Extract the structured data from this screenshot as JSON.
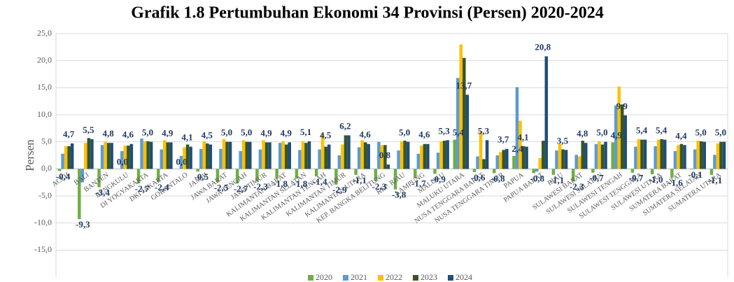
{
  "chart_data": {
    "type": "bar",
    "title": "Grafik 1.8 Pertumbuhan Ekonomi 34 Provinsi (Persen) 2020-2024",
    "y_label": "Persen",
    "categories": [
      "ACEH",
      "BALI",
      "BANTEN",
      "BENGKULU",
      "DI YOGYAKARTA",
      "DKI JAKARTA",
      "GORONTALO",
      "JAMBI",
      "JAWA BARAT",
      "JAWA TENGAH",
      "JAWA TIMUR",
      "KALIMANTAN BARAT",
      "KALIMANTAN SELATAN",
      "KALIMANTAN TENGAH",
      "KALIMANTAN TIMUR",
      "KALIMANTAN UTARA",
      "KEP. BANGKA BELITUNG",
      "KEP. RIAU",
      "LAMPUNG",
      "MALUKU",
      "MALUKU UTARA",
      "NUSA TENGGARA BARAT",
      "NUSA TENGGARA TIMUR",
      "PAPUA",
      "PAPUA BARAT",
      "RIAU",
      "SULAWESI BARAT",
      "SULAWESI SELATAN",
      "SULAWESI TENGAH",
      "SULAWESI TENGGARA",
      "SULAWESI UTARA",
      "SUMATERA BARAT",
      "SUMATERA SELATAN",
      "SUMATERA UTARA"
    ],
    "series": [
      {
        "name": "2020",
        "color": "#70ad47",
        "values": [
          -0.4,
          -9.3,
          -3.4,
          0.0,
          -2.7,
          -2.4,
          0.0,
          -0.5,
          -2.5,
          -2.7,
          -2.3,
          -1.8,
          -1.8,
          -1.4,
          -2.9,
          -1.1,
          -2.3,
          -3.8,
          -1.7,
          -0.9,
          5.4,
          -0.6,
          -0.8,
          2.4,
          -0.8,
          -1.1,
          -2.3,
          -0.7,
          4.9,
          -0.7,
          -1.0,
          -1.6,
          -0.1,
          -1.1
        ],
        "value_labels": [
          "-0,4",
          "-9,3",
          "-3,4",
          "0,0",
          "-2,7",
          "-2,4",
          "0,0",
          "-0,5",
          "-2,5",
          "-2,7",
          "-2,3",
          "-1,8",
          "-1,8",
          "-1,4",
          "-2,9",
          "-1,1",
          "-2,3",
          "-3,8",
          "-1,7",
          "-0,9",
          "5,4",
          "-0,6",
          "-0,8",
          "2,4",
          "-0,8",
          "-1,1",
          "-2,3",
          "-0,7",
          "4,9",
          "-0,7",
          "-1,0",
          "-1,6",
          "-0,1",
          "-1,1"
        ]
      },
      {
        "name": "2021",
        "color": "#5b9bd5",
        "values": [
          2.8,
          -2.5,
          4.4,
          3.3,
          5.6,
          3.6,
          2.4,
          3.7,
          3.7,
          3.3,
          3.6,
          4.8,
          3.5,
          3.6,
          2.5,
          4.0,
          5.0,
          3.4,
          2.8,
          3.0,
          16.8,
          2.3,
          2.5,
          15.1,
          -0.5,
          3.4,
          2.6,
          4.6,
          11.7,
          4.1,
          4.2,
          3.3,
          3.6,
          2.6
        ]
      },
      {
        "name": "2022",
        "color": "#ffc000",
        "values": [
          4.2,
          4.8,
          5.0,
          4.3,
          5.1,
          5.3,
          4.0,
          5.1,
          5.5,
          5.3,
          5.3,
          5.1,
          5.1,
          6.5,
          4.5,
          5.3,
          4.4,
          5.1,
          4.3,
          5.1,
          23.0,
          6.9,
          3.1,
          8.9,
          2.0,
          4.6,
          2.3,
          5.1,
          15.2,
          5.5,
          5.4,
          4.4,
          5.2,
          4.7
        ]
      },
      {
        "name": "2023",
        "color": "#375623",
        "values": [
          4.2,
          5.7,
          4.8,
          4.3,
          5.1,
          4.9,
          4.5,
          4.7,
          5.0,
          5.0,
          4.9,
          4.5,
          4.8,
          4.1,
          6.2,
          4.9,
          4.4,
          5.2,
          4.6,
          5.2,
          20.5,
          1.8,
          3.5,
          4.2,
          5.2,
          3.6,
          5.2,
          4.5,
          11.9,
          5.4,
          5.5,
          4.6,
          5.1,
          5.0
        ]
      },
      {
        "name": "2024",
        "color": "#1f4e79",
        "values": [
          4.7,
          5.5,
          4.8,
          4.6,
          5.0,
          4.9,
          4.1,
          4.5,
          5.0,
          5.0,
          4.9,
          4.9,
          5.1,
          4.5,
          6.2,
          4.6,
          0.8,
          5.0,
          4.6,
          5.3,
          13.7,
          5.3,
          3.7,
          4.1,
          20.8,
          3.5,
          4.8,
          5.0,
          9.9,
          5.4,
          5.4,
          4.4,
          5.0,
          5.0
        ],
        "value_labels": [
          "4,7",
          "5,5",
          "4,8",
          "4,6",
          "5,0",
          "4,9",
          "4,1",
          "4,5",
          "5,0",
          "5,0",
          "4,9",
          "4,9",
          "5,1",
          "4,5",
          "6,2",
          "4,6",
          "0,8",
          "5,0",
          "4,6",
          "5,3",
          "13,7",
          "5,3",
          "3,7",
          "4,1",
          "20,8",
          "3,5",
          "4,8",
          "5,0",
          "9,9",
          "5,4",
          "5,4",
          "4,4",
          "5,0",
          "5,0"
        ]
      }
    ],
    "ylim": [
      -20,
      25
    ],
    "yticks": [
      {
        "value": -15,
        "label": "-15,0"
      },
      {
        "value": -10,
        "label": "-10,0"
      },
      {
        "value": -5,
        "label": "-5,0"
      },
      {
        "value": 0,
        "label": "0,0"
      },
      {
        "value": 5,
        "label": "5,0"
      },
      {
        "value": 10,
        "label": "10,0"
      },
      {
        "value": 15,
        "label": "15,0"
      },
      {
        "value": 20,
        "label": "20,0"
      },
      {
        "value": 25,
        "label": "25,0"
      }
    ],
    "grid": true,
    "legend": "bottom"
  }
}
